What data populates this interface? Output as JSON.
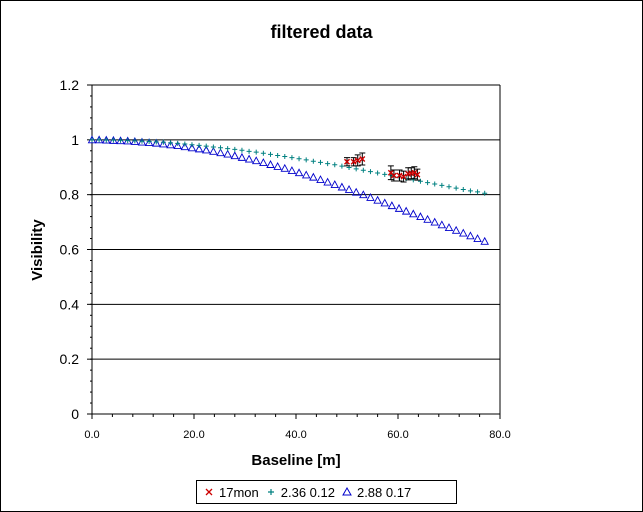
{
  "chart_data": {
    "type": "scatter",
    "title": "filtered data",
    "xlabel": "Baseline [m]",
    "ylabel": "Visibility",
    "xlim": [
      0,
      80
    ],
    "ylim": [
      0,
      1.2
    ],
    "x_ticks": [
      "0.0",
      "20.0",
      "40.0",
      "60.0",
      "80.0"
    ],
    "y_ticks": [
      "0",
      "0.2",
      "0.4",
      "0.6",
      "0.8",
      "1",
      "1.2"
    ],
    "grid": "horizontal",
    "legend_position": "bottom",
    "series": [
      {
        "name": "17mon",
        "marker": "x",
        "color": "#cc0000",
        "x": [
          50.0,
          51.3,
          52.1,
          53.0,
          58.6,
          59.2,
          60.3,
          61.1,
          62.0,
          62.6,
          63.2,
          63.8
        ],
        "y": [
          0.92,
          0.92,
          0.925,
          0.93,
          0.88,
          0.87,
          0.87,
          0.866,
          0.876,
          0.878,
          0.88,
          0.873
        ],
        "err": [
          0.015,
          0.015,
          0.02,
          0.022,
          0.025,
          0.02,
          0.02,
          0.02,
          0.022,
          0.02,
          0.022,
          0.02
        ]
      },
      {
        "name": "2.36 0.12",
        "marker": "+",
        "color": "#008080",
        "x": [
          0,
          1.4,
          2.8,
          4.2,
          5.6,
          7.0,
          8.4,
          9.8,
          11.2,
          12.6,
          14.0,
          15.4,
          16.8,
          18.2,
          19.6,
          21.0,
          22.4,
          23.8,
          25.2,
          26.6,
          28.0,
          29.4,
          30.8,
          32.2,
          33.6,
          35.0,
          36.4,
          37.8,
          39.2,
          40.6,
          42.0,
          43.4,
          44.8,
          46.2,
          47.6,
          49.0,
          50.4,
          51.8,
          53.2,
          54.6,
          56.0,
          57.4,
          58.8,
          60.2,
          61.6,
          63.0,
          64.4,
          65.8,
          67.2,
          68.6,
          70.0,
          71.4,
          72.8,
          74.2,
          75.6,
          77.0
        ],
        "y": [
          1.0,
          1.0,
          0.999,
          0.999,
          0.998,
          0.997,
          0.996,
          0.995,
          0.994,
          0.992,
          0.991,
          0.989,
          0.987,
          0.985,
          0.982,
          0.98,
          0.977,
          0.974,
          0.971,
          0.968,
          0.965,
          0.962,
          0.958,
          0.955,
          0.951,
          0.947,
          0.943,
          0.939,
          0.935,
          0.931,
          0.927,
          0.922,
          0.918,
          0.913,
          0.909,
          0.904,
          0.899,
          0.894,
          0.889,
          0.884,
          0.879,
          0.874,
          0.869,
          0.864,
          0.859,
          0.854,
          0.849,
          0.844,
          0.839,
          0.834,
          0.829,
          0.824,
          0.819,
          0.814,
          0.81,
          0.805
        ]
      },
      {
        "name": "2.88 0.17",
        "marker": "triangle",
        "color": "#0000cc",
        "x": [
          0,
          1.4,
          2.8,
          4.2,
          5.6,
          7.0,
          8.4,
          9.8,
          11.2,
          12.6,
          14.0,
          15.4,
          16.8,
          18.2,
          19.6,
          21.0,
          22.4,
          23.8,
          25.2,
          26.6,
          28.0,
          29.4,
          30.8,
          32.2,
          33.6,
          35.0,
          36.4,
          37.8,
          39.2,
          40.6,
          42.0,
          43.4,
          44.8,
          46.2,
          47.6,
          49.0,
          50.4,
          51.8,
          53.2,
          54.6,
          56.0,
          57.4,
          58.8,
          60.2,
          61.6,
          63.0,
          64.4,
          65.8,
          67.2,
          68.6,
          70.0,
          71.4,
          72.8,
          74.2,
          75.6,
          77.0
        ],
        "y": [
          1.0,
          1.0,
          0.999,
          0.998,
          0.997,
          0.996,
          0.994,
          0.992,
          0.99,
          0.988,
          0.985,
          0.982,
          0.979,
          0.975,
          0.971,
          0.967,
          0.963,
          0.958,
          0.953,
          0.948,
          0.942,
          0.936,
          0.93,
          0.924,
          0.917,
          0.91,
          0.903,
          0.896,
          0.888,
          0.88,
          0.872,
          0.864,
          0.855,
          0.846,
          0.837,
          0.828,
          0.819,
          0.809,
          0.8,
          0.79,
          0.78,
          0.77,
          0.76,
          0.75,
          0.74,
          0.73,
          0.72,
          0.71,
          0.7,
          0.69,
          0.68,
          0.67,
          0.66,
          0.65,
          0.64,
          0.63
        ]
      }
    ]
  }
}
